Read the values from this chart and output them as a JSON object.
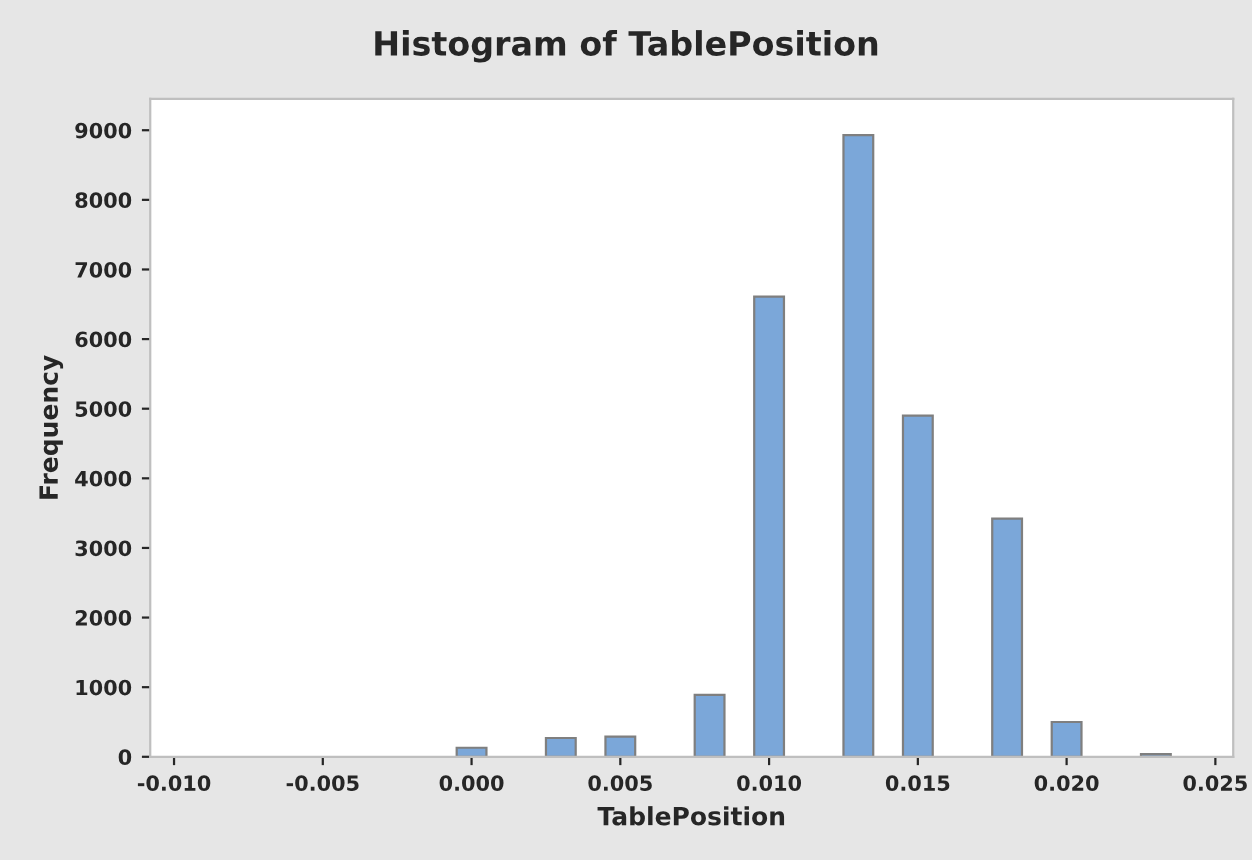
{
  "chart_data": {
    "type": "histogram",
    "title": "Histogram of TablePosition",
    "xlabel": "TablePosition",
    "ylabel": "Frequency",
    "bins": [
      -0.0005,
      0.0005,
      0.0015,
      0.0025,
      0.0035,
      0.0045,
      0.0055,
      0.0065,
      0.0075,
      0.0085,
      0.0095,
      0.0105,
      0.0115,
      0.0125,
      0.0135,
      0.0145,
      0.0155,
      0.0165,
      0.0175,
      0.0185,
      0.0195,
      0.0205,
      0.0215,
      0.0225,
      0.0235
    ],
    "values": [
      130,
      0,
      0,
      270,
      0,
      290,
      0,
      0,
      890,
      0,
      6610,
      0,
      0,
      8930,
      0,
      4900,
      0,
      0,
      3420,
      0,
      500,
      0,
      0,
      40
    ],
    "color": "#7ba7d9",
    "xlim": [
      -0.0108,
      0.0256
    ],
    "xticks": [
      {
        "value": -0.01,
        "label": "-0.010"
      },
      {
        "value": -0.005,
        "label": "-0.005"
      },
      {
        "value": 0,
        "label": "0.000"
      },
      {
        "value": 0.005,
        "label": "0.005"
      },
      {
        "value": 0.01,
        "label": "0.010"
      },
      {
        "value": 0.015,
        "label": "0.015"
      },
      {
        "value": 0.02,
        "label": "0.020"
      },
      {
        "value": 0.025,
        "label": "0.025"
      }
    ],
    "ylim": [
      0,
      9450
    ],
    "yticks": [
      0,
      1000,
      2000,
      3000,
      4000,
      5000,
      6000,
      7000,
      8000,
      9000
    ],
    "grid": false,
    "legend": false
  }
}
